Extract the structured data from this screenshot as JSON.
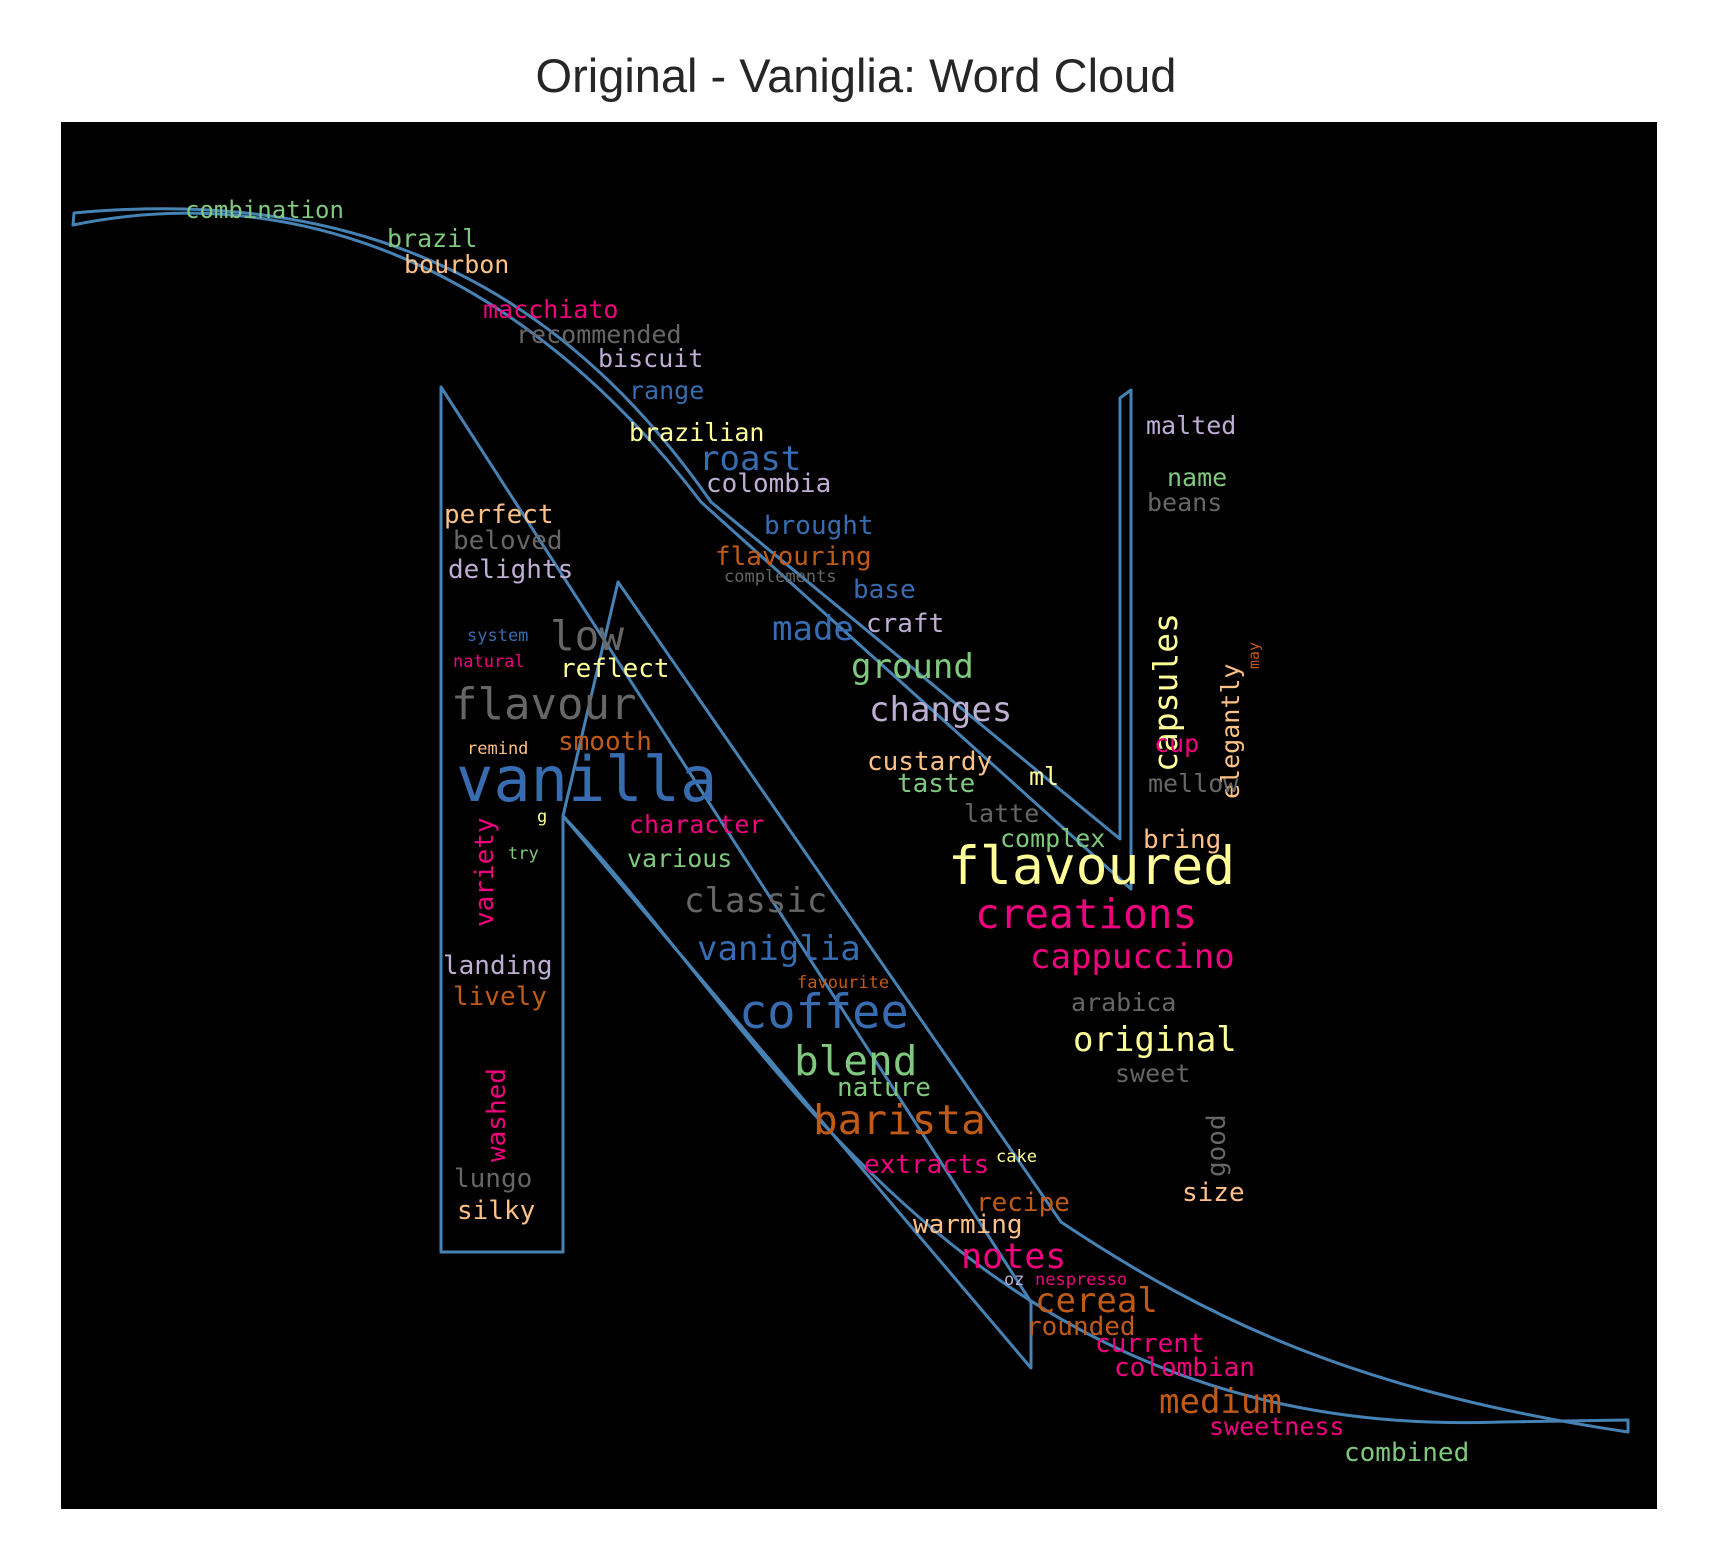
{
  "title": "Original - Vaniglia: Word Cloud",
  "outline_color": "#4682b4",
  "background_color": "#000000",
  "palette": {
    "green": "#7fc97f",
    "lavender": "#beaed4",
    "orange": "#fdc086",
    "yellow": "#ffff99",
    "blue": "#386cb0",
    "pink": "#f0027f",
    "brown": "#bf5b17",
    "gray": "#666666"
  },
  "words": [
    {
      "text": "combination",
      "color": "green"
    },
    {
      "text": "brazil",
      "color": "green"
    },
    {
      "text": "bourbon",
      "color": "orange"
    },
    {
      "text": "macchiato",
      "color": "pink"
    },
    {
      "text": "recommended",
      "color": "gray"
    },
    {
      "text": "biscuit",
      "color": "lavender"
    },
    {
      "text": "range",
      "color": "blue"
    },
    {
      "text": "brazilian",
      "color": "yellow"
    },
    {
      "text": "roast",
      "color": "blue"
    },
    {
      "text": "colombia",
      "color": "lavender"
    },
    {
      "text": "brought",
      "color": "blue"
    },
    {
      "text": "flavouring",
      "color": "brown"
    },
    {
      "text": "complements",
      "color": "gray"
    },
    {
      "text": "base",
      "color": "blue"
    },
    {
      "text": "made",
      "color": "blue"
    },
    {
      "text": "craft",
      "color": "lavender"
    },
    {
      "text": "ground",
      "color": "green"
    },
    {
      "text": "changes",
      "color": "lavender"
    },
    {
      "text": "custardy",
      "color": "orange"
    },
    {
      "text": "taste",
      "color": "green"
    },
    {
      "text": "ml",
      "color": "yellow"
    },
    {
      "text": "latte",
      "color": "gray"
    },
    {
      "text": "complex",
      "color": "green"
    },
    {
      "text": "flavoured",
      "color": "yellow"
    },
    {
      "text": "creations",
      "color": "pink"
    },
    {
      "text": "cappuccino",
      "color": "pink"
    },
    {
      "text": "arabica",
      "color": "gray"
    },
    {
      "text": "original",
      "color": "yellow"
    },
    {
      "text": "sweet",
      "color": "gray"
    },
    {
      "text": "perfect",
      "color": "orange"
    },
    {
      "text": "beloved",
      "color": "gray"
    },
    {
      "text": "delights",
      "color": "lavender"
    },
    {
      "text": "system",
      "color": "blue"
    },
    {
      "text": "natural",
      "color": "pink"
    },
    {
      "text": "low",
      "color": "gray"
    },
    {
      "text": "reflect",
      "color": "yellow"
    },
    {
      "text": "flavour",
      "color": "gray"
    },
    {
      "text": "remind",
      "color": "orange"
    },
    {
      "text": "smooth",
      "color": "brown"
    },
    {
      "text": "vanilla",
      "color": "blue"
    },
    {
      "text": "g",
      "color": "yellow"
    },
    {
      "text": "try",
      "color": "green"
    },
    {
      "text": "variety",
      "color": "pink"
    },
    {
      "text": "character",
      "color": "pink"
    },
    {
      "text": "various",
      "color": "green"
    },
    {
      "text": "classic",
      "color": "gray"
    },
    {
      "text": "vaniglia",
      "color": "blue"
    },
    {
      "text": "favourite",
      "color": "brown"
    },
    {
      "text": "coffee",
      "color": "blue"
    },
    {
      "text": "blend",
      "color": "green"
    },
    {
      "text": "nature",
      "color": "green"
    },
    {
      "text": "barista",
      "color": "brown"
    },
    {
      "text": "extracts",
      "color": "pink"
    },
    {
      "text": "cake",
      "color": "yellow"
    },
    {
      "text": "recipe",
      "color": "brown"
    },
    {
      "text": "warming",
      "color": "orange"
    },
    {
      "text": "notes",
      "color": "pink"
    },
    {
      "text": "oz",
      "color": "lavender"
    },
    {
      "text": "nespresso",
      "color": "pink"
    },
    {
      "text": "cereal",
      "color": "brown"
    },
    {
      "text": "rounded",
      "color": "brown"
    },
    {
      "text": "current",
      "color": "pink"
    },
    {
      "text": "colombian",
      "color": "pink"
    },
    {
      "text": "medium",
      "color": "brown"
    },
    {
      "text": "sweetness",
      "color": "pink"
    },
    {
      "text": "combined",
      "color": "green"
    },
    {
      "text": "landing",
      "color": "lavender"
    },
    {
      "text": "lively",
      "color": "brown"
    },
    {
      "text": "washed",
      "color": "pink"
    },
    {
      "text": "lungo",
      "color": "gray"
    },
    {
      "text": "silky",
      "color": "orange"
    },
    {
      "text": "malted",
      "color": "lavender"
    },
    {
      "text": "name",
      "color": "green"
    },
    {
      "text": "beans",
      "color": "gray"
    },
    {
      "text": "capsules",
      "color": "yellow"
    },
    {
      "text": "elegantly",
      "color": "orange"
    },
    {
      "text": "may",
      "color": "brown"
    },
    {
      "text": "cup",
      "color": "pink"
    },
    {
      "text": "mellow",
      "color": "gray"
    },
    {
      "text": "bring",
      "color": "orange"
    },
    {
      "text": "good",
      "color": "gray"
    },
    {
      "text": "size",
      "color": "orange"
    }
  ]
}
